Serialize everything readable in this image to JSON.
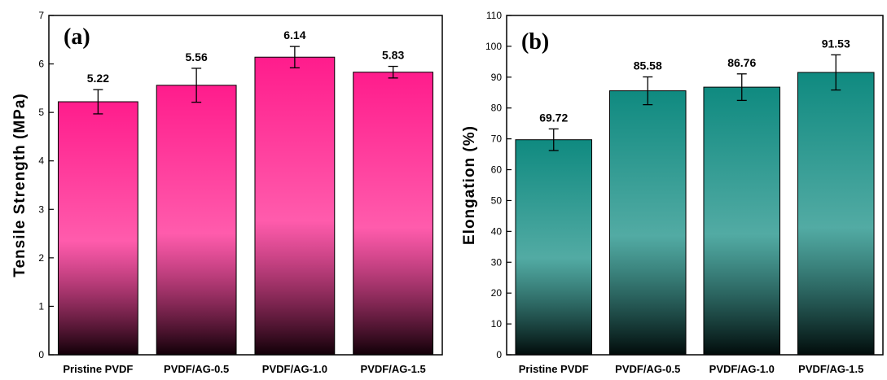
{
  "chart_data": [
    {
      "type": "bar",
      "panel_label": "(a)",
      "title": "",
      "xlabel": "",
      "ylabel": "Tensile Strength (MPa)",
      "categories": [
        "Pristine PVDF",
        "PVDF/AG-0.5",
        "PVDF/AG-1.0",
        "PVDF/AG-1.5"
      ],
      "values": [
        5.22,
        5.56,
        6.14,
        5.83
      ],
      "value_labels": [
        "5.22",
        "5.56",
        "6.14",
        "5.83"
      ],
      "errors": [
        0.25,
        0.35,
        0.22,
        0.12
      ],
      "ylim": [
        0,
        7
      ],
      "yticks": [
        0,
        1,
        2,
        3,
        4,
        5,
        6,
        7
      ],
      "grid": false,
      "bar_color_top": "#ff1c8c",
      "bar_color_bottom": "#120008"
    },
    {
      "type": "bar",
      "panel_label": "(b)",
      "title": "",
      "xlabel": "",
      "ylabel": "Elongation (%)",
      "categories": [
        "Pristine PVDF",
        "PVDF/AG-0.5",
        "PVDF/AG-1.0",
        "PVDF/AG-1.5"
      ],
      "values": [
        69.72,
        85.58,
        86.76,
        91.53
      ],
      "value_labels": [
        "69.72",
        "85.58",
        "86.76",
        "91.53"
      ],
      "errors": [
        3.5,
        4.5,
        4.3,
        5.7
      ],
      "ylim": [
        0,
        110
      ],
      "yticks": [
        0,
        10,
        20,
        30,
        40,
        50,
        60,
        70,
        80,
        90,
        100,
        110
      ],
      "grid": false,
      "bar_color_top": "#0f8a80",
      "bar_color_bottom": "#020c0b"
    }
  ]
}
